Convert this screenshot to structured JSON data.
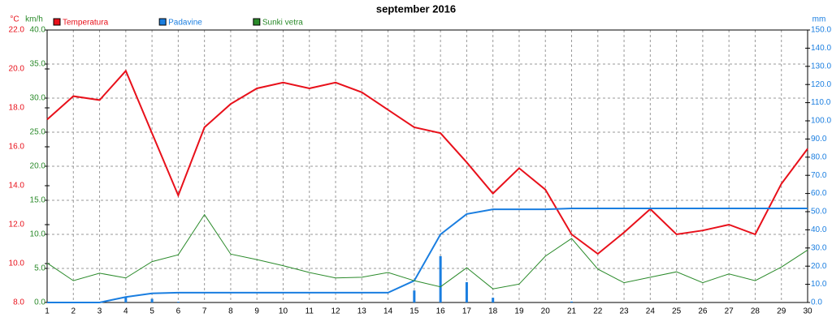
{
  "chart_data": {
    "type": "line",
    "title": "september 2016",
    "x": [
      1,
      2,
      3,
      4,
      5,
      6,
      7,
      8,
      9,
      10,
      11,
      12,
      13,
      14,
      15,
      16,
      17,
      18,
      19,
      20,
      21,
      22,
      23,
      24,
      25,
      26,
      27,
      28,
      29,
      30
    ],
    "xlim": [
      1,
      30
    ],
    "y_label": "°C",
    "y2_label": "km/h",
    "y3_label": "mm",
    "ylim": [
      8,
      22
    ],
    "yticks": [
      {
        "value": 8,
        "label": "8.0"
      },
      {
        "value": 10,
        "label": "10.0"
      },
      {
        "value": 12,
        "label": "12.0"
      },
      {
        "value": 14,
        "label": "14.0"
      },
      {
        "value": 16,
        "label": "16.0"
      },
      {
        "value": 18,
        "label": "18.0"
      },
      {
        "value": 20,
        "label": "20.0"
      },
      {
        "value": 22,
        "label": "22.0"
      }
    ],
    "y2lim": [
      0,
      40
    ],
    "y2ticks": [
      {
        "value": 0,
        "label": "0.0"
      },
      {
        "value": 5,
        "label": "5.0"
      },
      {
        "value": 10,
        "label": "10.0"
      },
      {
        "value": 15,
        "label": "15.0"
      },
      {
        "value": 20,
        "label": "20.0"
      },
      {
        "value": 25,
        "label": "25.0"
      },
      {
        "value": 30,
        "label": "30.0"
      },
      {
        "value": 35,
        "label": "35.0"
      },
      {
        "value": 40,
        "label": "40.0"
      }
    ],
    "y3lim": [
      0,
      150
    ],
    "y3ticks": [
      {
        "value": 0,
        "label": "0.0"
      },
      {
        "value": 10,
        "label": "10.0"
      },
      {
        "value": 20,
        "label": "20.0"
      },
      {
        "value": 30,
        "label": "30.0"
      },
      {
        "value": 40,
        "label": "40.0"
      },
      {
        "value": 50,
        "label": "50.0"
      },
      {
        "value": 60,
        "label": "60.0"
      },
      {
        "value": 70,
        "label": "70.0"
      },
      {
        "value": 80,
        "label": "80.0"
      },
      {
        "value": 90,
        "label": "90.0"
      },
      {
        "value": 100,
        "label": "100.0"
      },
      {
        "value": 110,
        "label": "110.0"
      },
      {
        "value": 120,
        "label": "120.0"
      },
      {
        "value": 130,
        "label": "130.0"
      },
      {
        "value": 140,
        "label": "140.0"
      },
      {
        "value": 150,
        "label": "150.0"
      }
    ],
    "grid": "y2",
    "series": [
      {
        "name": "Temperatura",
        "color": "#e8101a",
        "axis": "y",
        "values": [
          17.4,
          18.6,
          18.4,
          19.9,
          16.7,
          13.5,
          17.0,
          18.2,
          19.0,
          19.3,
          19.0,
          19.3,
          18.8,
          17.9,
          17.0,
          16.7,
          15.2,
          13.6,
          14.9,
          13.8,
          11.5,
          10.5,
          11.6,
          12.8,
          11.5,
          11.7,
          12.0,
          11.5,
          14.1,
          15.9
        ]
      },
      {
        "name": "Padavine",
        "color": "#1a7ee0",
        "axis": "y3",
        "values": [
          0,
          0,
          0,
          3,
          5,
          5.4,
          5.4,
          5.4,
          5.4,
          5.4,
          5.4,
          5.4,
          5.4,
          5.4,
          12,
          37.5,
          48.7,
          51.3,
          51.3,
          51.3,
          51.8,
          51.8,
          51.8,
          51.8,
          51.8,
          51.8,
          51.8,
          51.8,
          51.8,
          51.8
        ],
        "bar_values": [
          0,
          0,
          0,
          3,
          2,
          0.4,
          0,
          0,
          0,
          0,
          0,
          0,
          0,
          0,
          6.6,
          25.5,
          11.2,
          2.6,
          0,
          0,
          0.5,
          0,
          0,
          0,
          0,
          0,
          0,
          0,
          0,
          0
        ]
      },
      {
        "name": "Sunki vetra",
        "color": "#2a8a2a",
        "axis": "y2",
        "values": [
          5.8,
          3.2,
          4.3,
          3.6,
          6.0,
          7.0,
          12.9,
          7.1,
          6.3,
          5.4,
          4.4,
          3.6,
          3.7,
          4.4,
          3.2,
          2.3,
          5.1,
          2.0,
          2.7,
          6.8,
          9.4,
          4.9,
          2.9,
          3.7,
          4.5,
          2.9,
          4.2,
          3.2,
          5.2,
          7.7
        ]
      }
    ]
  }
}
